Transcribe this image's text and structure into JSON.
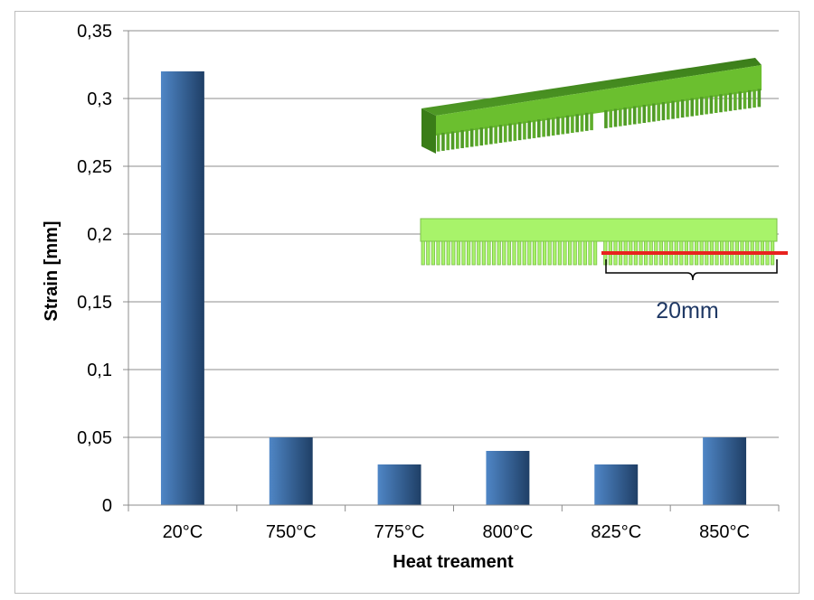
{
  "chart_data": {
    "type": "bar",
    "title": "",
    "xlabel": "Heat treament",
    "ylabel": "Strain [mm]",
    "categories": [
      "20°C",
      "750°C",
      "775°C",
      "800°C",
      "825°C",
      "850°C"
    ],
    "values": [
      0.32,
      0.05,
      0.03,
      0.04,
      0.03,
      0.05
    ],
    "ylim": [
      0,
      0.35
    ],
    "yticks": [
      0,
      0.05,
      0.1,
      0.15,
      0.2,
      0.25,
      0.3,
      0.35
    ],
    "ytick_labels": [
      "0",
      "0,05",
      "0,1",
      "0,15",
      "0,2",
      "0,25",
      "0,3",
      "0,35"
    ],
    "grid": true,
    "legend": "none",
    "colors": {
      "bar_light": "#4f86c6",
      "bar_dark": "#1f3f66",
      "grid": "#8c8c8c",
      "axis": "#8c8c8c",
      "inset_dark_green": "#3f8a1c",
      "inset_light_green": "#a8f36a",
      "measure_line": "#e8231f",
      "dimension_text": "#1f3864"
    }
  },
  "inset": {
    "dimension_label": "20mm"
  }
}
